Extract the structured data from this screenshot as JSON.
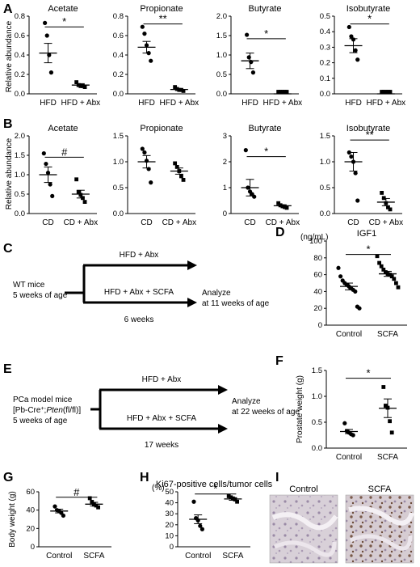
{
  "panels": {
    "A": "A",
    "B": "B",
    "C": "C",
    "D": "D",
    "E": "E",
    "F": "F",
    "G": "G",
    "H": "H",
    "I": "I"
  },
  "shared_labels": {
    "relative_abundance": "Relative abundance"
  },
  "chart_data": [
    {
      "panel": "A",
      "type": "scatter",
      "title": "Acetate",
      "ylabel": "Relative abundance",
      "ylim": [
        0,
        0.8
      ],
      "yticks": [
        "0.0",
        "0.2",
        "0.4",
        "0.6",
        "0.8"
      ],
      "ytick_values": [
        0,
        0.2,
        0.4,
        0.6,
        0.8
      ],
      "categories": [
        "HFD",
        "HFD + Abx"
      ],
      "points": [
        [
          0.73,
          0.6,
          0.4,
          0.22
        ],
        [
          0.12,
          0.09,
          0.08,
          0.08,
          0.07
        ]
      ],
      "means": [
        0.42,
        0.09
      ],
      "sems": [
        0.1,
        0.015
      ],
      "significance": "*",
      "sig_y": 0.69,
      "point_markers": [
        "circle",
        "square"
      ]
    },
    {
      "panel": "A",
      "type": "scatter",
      "title": "Propionate",
      "ylabel": "",
      "ylim": [
        0,
        0.8
      ],
      "yticks": [
        "0.0",
        "0.2",
        "0.4",
        "0.6",
        "0.8"
      ],
      "ytick_values": [
        0,
        0.2,
        0.4,
        0.6,
        0.8
      ],
      "categories": [
        "HFD",
        "HFD + Abx"
      ],
      "points": [
        [
          0.69,
          0.62,
          0.5,
          0.42,
          0.34
        ],
        [
          0.07,
          0.05,
          0.04,
          0.04,
          0.03
        ]
      ],
      "means": [
        0.48,
        0.045
      ],
      "sems": [
        0.06,
        0.01
      ],
      "significance": "**",
      "sig_y": 0.72,
      "point_markers": [
        "circle",
        "square"
      ]
    },
    {
      "panel": "A",
      "type": "scatter",
      "title": "Butyrate",
      "ylabel": "",
      "ylim": [
        0,
        2.0
      ],
      "yticks": [
        "0.0",
        "0.5",
        "1.0",
        "1.5",
        "2.0"
      ],
      "ytick_values": [
        0,
        0.5,
        1.0,
        1.5,
        2.0
      ],
      "categories": [
        "HFD",
        "HFD + Abx"
      ],
      "points": [
        [
          1.52,
          0.94,
          0.82,
          0.55
        ],
        [
          0.0,
          0.0,
          0.0,
          0.0,
          0.0
        ]
      ],
      "means": [
        0.85,
        0.0
      ],
      "sems": [
        0.2,
        0.0
      ],
      "significance": "*",
      "sig_y": 1.42,
      "point_markers": [
        "circle",
        "square"
      ]
    },
    {
      "panel": "A",
      "type": "scatter",
      "title": "Isobutyrate",
      "ylabel": "",
      "ylim": [
        0,
        0.5
      ],
      "yticks": [
        "0.0",
        "0.1",
        "0.2",
        "0.3",
        "0.4",
        "0.5"
      ],
      "ytick_values": [
        0,
        0.1,
        0.2,
        0.3,
        0.4,
        0.5
      ],
      "categories": [
        "HFD",
        "HFD + Abx"
      ],
      "points": [
        [
          0.43,
          0.37,
          0.35,
          0.28,
          0.22
        ],
        [
          0.0,
          0.0,
          0.0,
          0.0,
          0.0
        ]
      ],
      "means": [
        0.31,
        0.0
      ],
      "sems": [
        0.045,
        0.0
      ],
      "significance": "*",
      "sig_y": 0.45,
      "point_markers": [
        "circle",
        "square"
      ]
    },
    {
      "panel": "B",
      "type": "scatter",
      "title": "Acetate",
      "ylabel": "Relative abundance",
      "ylim": [
        0,
        2.0
      ],
      "yticks": [
        "0.0",
        "0.5",
        "1.0",
        "1.5",
        "2.0"
      ],
      "ytick_values": [
        0,
        0.5,
        1.0,
        1.5,
        2.0
      ],
      "categories": [
        "CD",
        "CD + Abx"
      ],
      "points": [
        [
          1.55,
          1.28,
          1.05,
          0.75,
          0.45
        ],
        [
          0.88,
          0.55,
          0.48,
          0.4,
          0.3
        ]
      ],
      "means": [
        1.0,
        0.5
      ],
      "sems": [
        0.2,
        0.1
      ],
      "significance": "#",
      "sig_y": 1.45,
      "point_markers": [
        "circle",
        "square"
      ]
    },
    {
      "panel": "B",
      "type": "scatter",
      "title": "Propionate",
      "ylabel": "",
      "ylim": [
        0,
        1.5
      ],
      "yticks": [
        "0.0",
        "0.5",
        "1.0",
        "1.5"
      ],
      "ytick_values": [
        0,
        0.5,
        1.0,
        1.5
      ],
      "categories": [
        "CD",
        "CD + Abx"
      ],
      "points": [
        [
          1.25,
          1.18,
          1.02,
          0.86,
          0.6
        ],
        [
          0.97,
          0.9,
          0.82,
          0.72,
          0.65
        ]
      ],
      "means": [
        1.0,
        0.82
      ],
      "sems": [
        0.12,
        0.06
      ],
      "significance": "",
      "sig_y": 0,
      "point_markers": [
        "circle",
        "square"
      ]
    },
    {
      "panel": "B",
      "type": "scatter",
      "title": "Butyrate",
      "ylabel": "",
      "ylim": [
        0,
        3
      ],
      "yticks": [
        "0",
        "1",
        "2",
        "3"
      ],
      "ytick_values": [
        0,
        1,
        2,
        3
      ],
      "categories": [
        "CD",
        "CD + Abx"
      ],
      "points": [
        [
          2.45,
          1.0,
          0.85,
          0.75,
          0.65
        ],
        [
          0.4,
          0.32,
          0.28,
          0.25,
          0.22
        ]
      ],
      "means": [
        1.0,
        0.3
      ],
      "sems": [
        0.32,
        0.04
      ],
      "significance": "*",
      "sig_y": 2.2,
      "point_markers": [
        "circle",
        "square"
      ]
    },
    {
      "panel": "B",
      "type": "scatter",
      "title": "Isobutyrate",
      "ylabel": "",
      "ylim": [
        0,
        1.5
      ],
      "yticks": [
        "0.0",
        "0.5",
        "1.0",
        "1.5"
      ],
      "ytick_values": [
        0,
        0.5,
        1.0,
        1.5
      ],
      "categories": [
        "CD",
        "CD + Abx"
      ],
      "points": [
        [
          1.18,
          1.1,
          1.0,
          0.78,
          0.25
        ],
        [
          0.4,
          0.3,
          0.2,
          0.12,
          0.08
        ]
      ],
      "means": [
        1.0,
        0.22
      ],
      "sems": [
        0.18,
        0.07
      ],
      "significance": "**",
      "sig_y": 1.42,
      "point_markers": [
        "circle",
        "square"
      ]
    },
    {
      "panel": "D",
      "type": "scatter",
      "title": "IGF1",
      "ylabel": "(ng/mL)",
      "ylim": [
        0,
        100
      ],
      "yticks": [
        "0",
        "20",
        "40",
        "60",
        "80",
        "100"
      ],
      "ytick_values": [
        0,
        20,
        40,
        60,
        80,
        100
      ],
      "categories": [
        "Control",
        "SCFA"
      ],
      "points": [
        [
          68,
          58,
          53,
          50,
          48,
          46,
          44,
          42,
          40,
          22,
          20
        ],
        [
          82,
          74,
          70,
          66,
          63,
          61,
          60,
          58,
          55,
          50,
          45
        ]
      ],
      "means": [
        46,
        61
      ],
      "sems": [
        4,
        3
      ],
      "significance": "*",
      "sig_y": 84,
      "point_markers": [
        "circle",
        "square"
      ]
    },
    {
      "panel": "F",
      "type": "scatter",
      "title": "",
      "ylabel": "Prostate weight (g)",
      "ylim": [
        0,
        1.5
      ],
      "yticks": [
        "0.0",
        "0.5",
        "1.0",
        "1.5"
      ],
      "ytick_values": [
        0,
        0.5,
        1.0,
        1.5
      ],
      "categories": [
        "Control",
        "SCFA"
      ],
      "points": [
        [
          0.48,
          0.33,
          0.3,
          0.27,
          0.25
        ],
        [
          1.18,
          0.82,
          0.78,
          0.52,
          0.3
        ]
      ],
      "means": [
        0.32,
        0.77
      ],
      "sems": [
        0.04,
        0.18
      ],
      "significance": "*",
      "sig_y": 1.35,
      "point_markers": [
        "circle",
        "square"
      ]
    },
    {
      "panel": "G",
      "type": "scatter",
      "title": "",
      "ylabel": "Body weight (g)",
      "ylim": [
        0,
        60
      ],
      "yticks": [
        "0",
        "20",
        "40",
        "60"
      ],
      "ytick_values": [
        0,
        20,
        40,
        60
      ],
      "categories": [
        "Control",
        "SCFA"
      ],
      "points": [
        [
          44,
          40,
          39,
          37,
          34
        ],
        [
          53,
          49,
          46,
          45,
          43
        ]
      ],
      "means": [
        39,
        46.5
      ],
      "sems": [
        2,
        2
      ],
      "significance": "#",
      "sig_y": 54,
      "point_markers": [
        "circle",
        "square"
      ]
    },
    {
      "panel": "H",
      "type": "scatter",
      "title": "Ki67-positive cells/tumor cells",
      "ylabel": "(%)",
      "ylim": [
        0,
        50
      ],
      "yticks": [
        "0",
        "10",
        "20",
        "30",
        "40",
        "50"
      ],
      "ytick_values": [
        0,
        10,
        20,
        30,
        40,
        50
      ],
      "categories": [
        "Control",
        "SCFA"
      ],
      "points": [
        [
          41,
          26,
          24,
          19,
          16
        ],
        [
          46,
          45,
          44,
          43,
          41
        ]
      ],
      "means": [
        25,
        43.5
      ],
      "sems": [
        4,
        1.2
      ],
      "significance": "*",
      "sig_y": 48,
      "point_markers": [
        "circle",
        "square"
      ]
    }
  ],
  "diagrams": {
    "C": {
      "start_label_1": "WT mice",
      "start_label_2": "5 weeks of age",
      "arm_top": "HFD + Abx",
      "arm_bottom": "HFD + Abx + SCFA",
      "duration": "6 weeks",
      "end_label_1": "Analyze",
      "end_label_2": "at 11 weeks of age"
    },
    "E": {
      "start_label_1": "PCa model mice",
      "genotype_prefix": "[Pb-Cre",
      "genotype_plus": "+",
      "genotype_mid": ";",
      "genotype_gene": "Pten",
      "genotype_suffix": "(fl/fl)]",
      "start_label_3": "5 weeks of age",
      "arm_top": "HFD + Abx",
      "arm_bottom": "HFD + Abx + SCFA",
      "duration": "17 weeks",
      "end_label_1": "Analyze",
      "end_label_2": "at 22 weeks of age"
    }
  },
  "histology": {
    "left_label": "Control",
    "right_label": "SCFA"
  }
}
